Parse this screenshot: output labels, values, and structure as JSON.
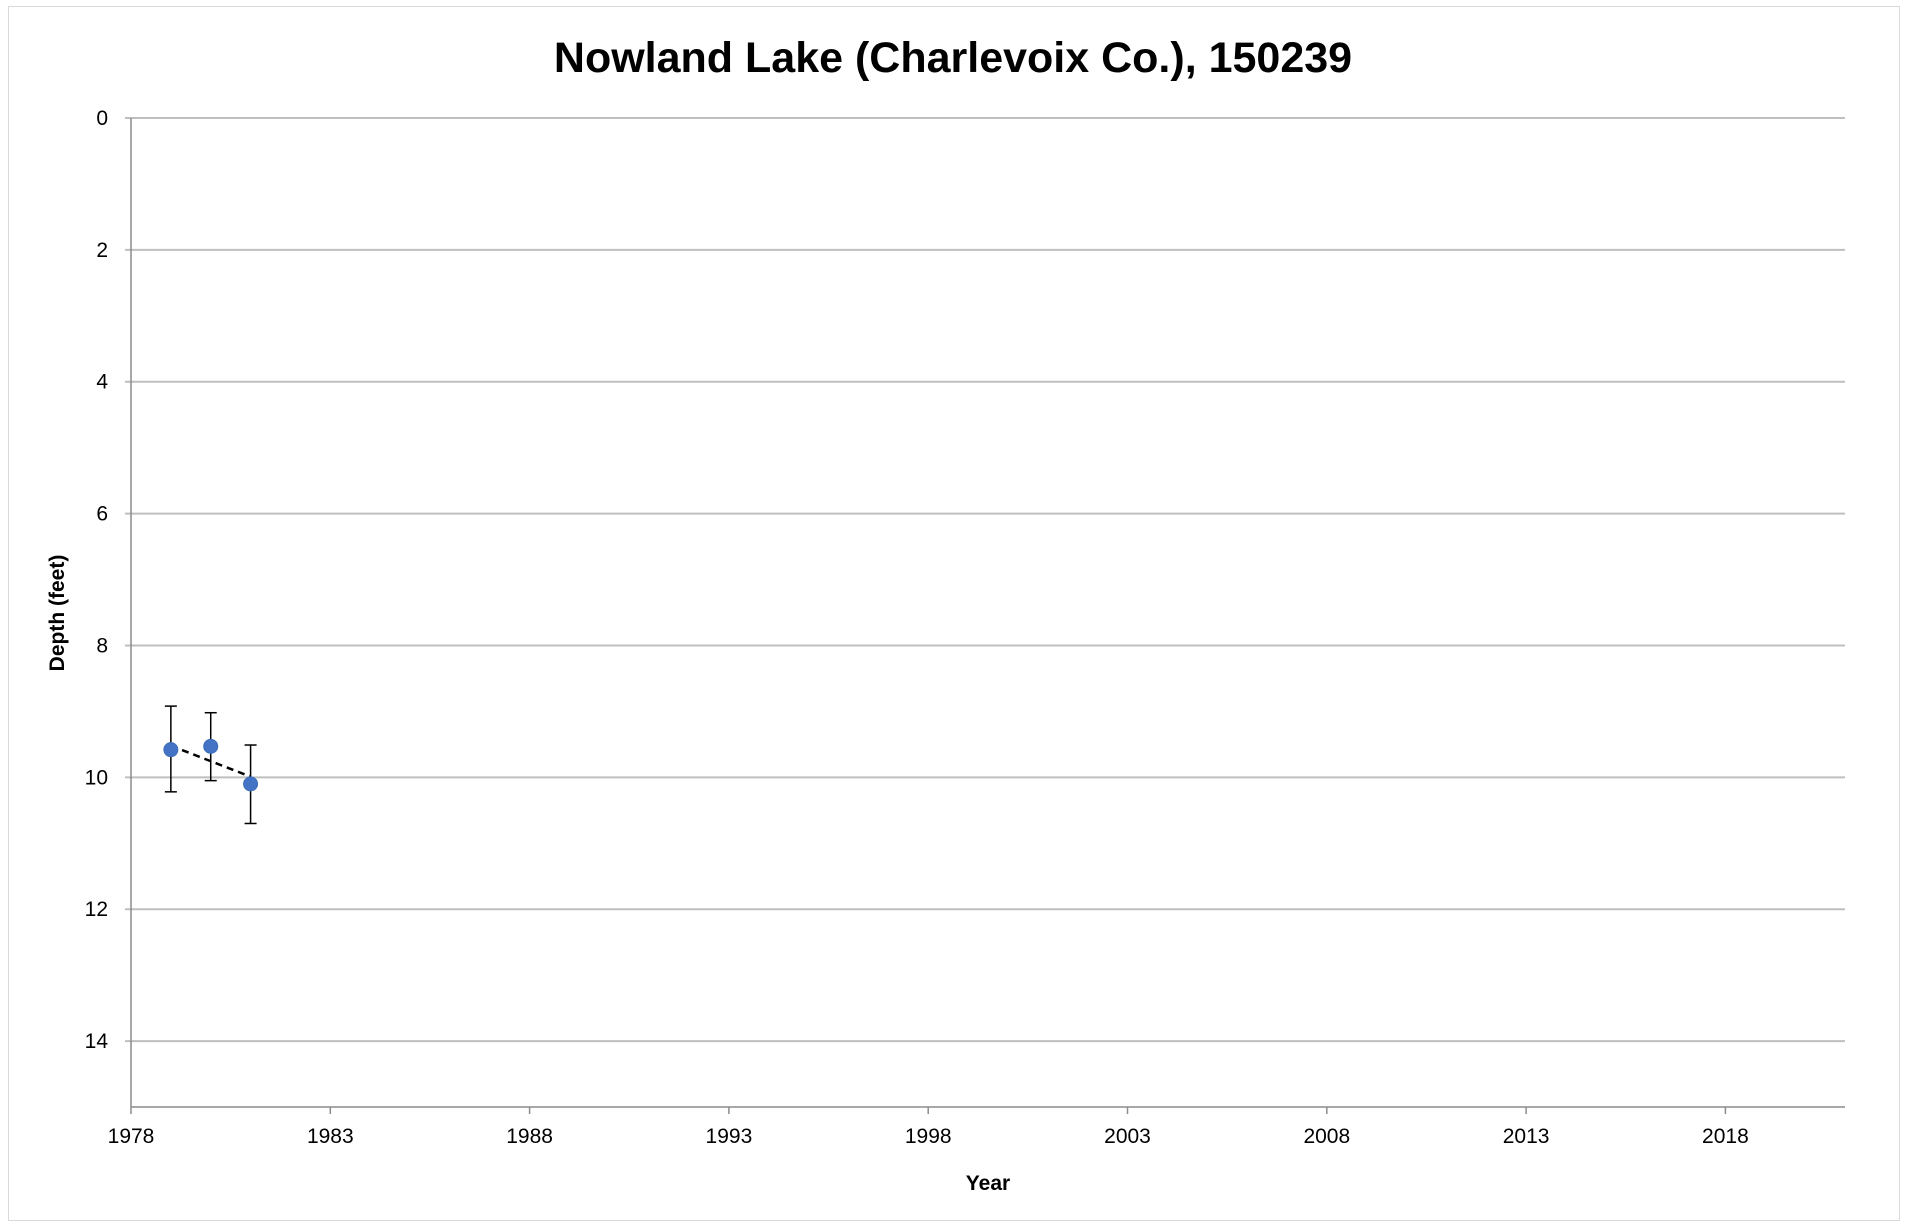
{
  "chart_data": {
    "type": "scatter",
    "title": "Nowland Lake (Charlevoix Co.), 150239",
    "xlabel": "Year",
    "ylabel": "Depth (feet)",
    "xlim": [
      1978,
      2021
    ],
    "ylim": [
      0,
      15
    ],
    "y_inverted": true,
    "x_ticks": [
      1978,
      1983,
      1988,
      1993,
      1998,
      2003,
      2008,
      2013,
      2018
    ],
    "y_ticks": [
      0,
      2,
      4,
      6,
      8,
      10,
      12,
      14
    ],
    "grid": "horizontal",
    "legend": "none",
    "series": [
      {
        "x": [
          1979,
          1980,
          1981
        ],
        "y": [
          9.58,
          9.53,
          10.1
        ],
        "error_low": [
          8.92,
          9.02,
          9.51
        ],
        "error_high": [
          10.22,
          10.05,
          10.7
        ],
        "color": "#4472c4"
      }
    ],
    "trendline": {
      "style": "dashed",
      "color": "#000000",
      "x": [
        1979,
        1981
      ],
      "y": [
        9.52,
        9.99
      ]
    }
  }
}
